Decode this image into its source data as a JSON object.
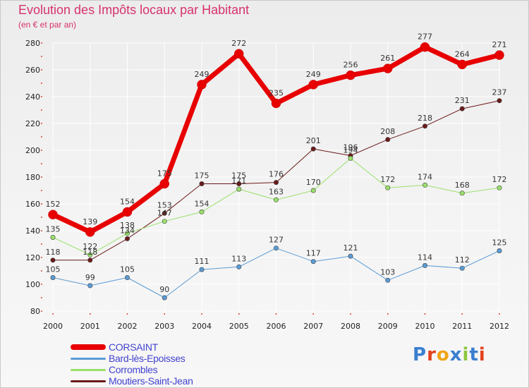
{
  "title": "Evolution des Impôts locaux par Habitant",
  "subtitle": "(en € et par an)",
  "logo": "Proxiti",
  "colors": {
    "title": "#d6326e",
    "legend_text": "#4242d0",
    "grid": "#ffffff",
    "tick_marks": "#e04040"
  },
  "chart_data": {
    "type": "line",
    "title": "Evolution des Impôts locaux par Habitant",
    "subtitle": "(en € et par an)",
    "xlabel": "",
    "ylabel": "",
    "x": [
      "2000",
      "2001",
      "2002",
      "2003",
      "2004",
      "2005",
      "2006",
      "2007",
      "2008",
      "2009",
      "2010",
      "2011",
      "2012"
    ],
    "ylim": [
      80,
      280
    ],
    "yticks": [
      80,
      100,
      120,
      140,
      160,
      180,
      200,
      220,
      240,
      260,
      280
    ],
    "grid": true,
    "legend": "bottom-left",
    "series": [
      {
        "name": "Moutiers-Saint-Jean",
        "color": "#6b1a1a",
        "line_width": 1,
        "values": [
          118,
          118,
          134,
          153,
          175,
          175,
          176,
          201,
          196,
          208,
          218,
          231,
          237
        ]
      },
      {
        "name": "Corrombles",
        "color": "#99e06a",
        "line_width": 1,
        "values": [
          135,
          122,
          138,
          147,
          154,
          171,
          163,
          170,
          194,
          172,
          174,
          168,
          172
        ]
      },
      {
        "name": "Bard-lès-Epoisses",
        "color": "#5b9bd5",
        "line_width": 1,
        "values": [
          105,
          99,
          105,
          90,
          111,
          113,
          127,
          117,
          121,
          103,
          114,
          112,
          125
        ]
      },
      {
        "name": "CORSAINT",
        "color": "#e80000",
        "line_width": 7,
        "values": [
          152,
          139,
          154,
          175,
          249,
          272,
          235,
          249,
          256,
          261,
          277,
          264,
          271
        ]
      }
    ],
    "legend_order": [
      "CORSAINT",
      "Bard-lès-Epoisses",
      "Corrombles",
      "Moutiers-Saint-Jean"
    ]
  }
}
